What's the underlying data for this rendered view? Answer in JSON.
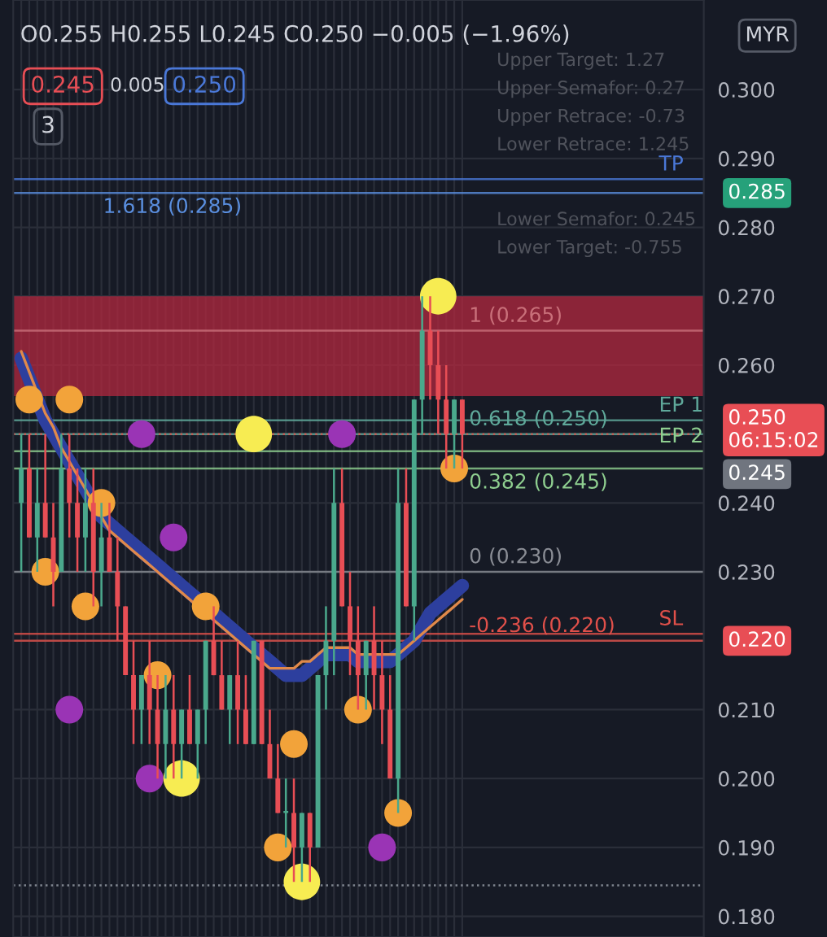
{
  "chart_data": {
    "type": "candlestick",
    "categories": [
      null,
      null,
      null,
      null,
      null,
      null,
      null,
      null,
      null,
      null,
      null,
      null,
      null,
      null,
      null,
      null,
      null,
      null,
      null,
      null,
      null,
      null,
      null,
      null,
      null,
      null,
      null,
      null,
      null,
      null,
      null,
      null,
      null,
      null,
      null,
      null,
      null,
      null,
      null,
      null,
      null,
      null,
      null,
      null,
      null,
      null,
      null,
      null,
      null,
      null,
      null,
      null,
      null,
      null,
      null,
      null
    ],
    "ohlc": [
      [
        0.24,
        0.25,
        0.23,
        0.245
      ],
      [
        0.245,
        0.25,
        0.235,
        0.235
      ],
      [
        0.235,
        0.245,
        0.23,
        0.24
      ],
      [
        0.24,
        0.25,
        0.235,
        0.235
      ],
      [
        0.235,
        0.24,
        0.225,
        0.23
      ],
      [
        0.23,
        0.25,
        0.23,
        0.245
      ],
      [
        0.245,
        0.25,
        0.235,
        0.24
      ],
      [
        0.24,
        0.245,
        0.23,
        0.235
      ],
      [
        0.235,
        0.245,
        0.23,
        0.24
      ],
      [
        0.24,
        0.245,
        0.225,
        0.23
      ],
      [
        0.23,
        0.24,
        0.225,
        0.235
      ],
      [
        0.235,
        0.24,
        0.23,
        0.23
      ],
      [
        0.23,
        0.235,
        0.22,
        0.225
      ],
      [
        0.225,
        0.225,
        0.215,
        0.215
      ],
      [
        0.215,
        0.22,
        0.205,
        0.21
      ],
      [
        0.21,
        0.215,
        0.205,
        0.215
      ],
      [
        0.215,
        0.22,
        0.205,
        0.21
      ],
      [
        0.21,
        0.215,
        0.2,
        0.205
      ],
      [
        0.205,
        0.215,
        0.2,
        0.21
      ],
      [
        0.21,
        0.215,
        0.2,
        0.205
      ],
      [
        0.205,
        0.21,
        0.2,
        0.21
      ],
      [
        0.21,
        0.215,
        0.205,
        0.205
      ],
      [
        0.205,
        0.21,
        0.2,
        0.21
      ],
      [
        0.21,
        0.22,
        0.205,
        0.22
      ],
      [
        0.22,
        0.225,
        0.215,
        0.215
      ],
      [
        0.215,
        0.22,
        0.21,
        0.21
      ],
      [
        0.21,
        0.215,
        0.205,
        0.215
      ],
      [
        0.215,
        0.22,
        0.205,
        0.21
      ],
      [
        0.21,
        0.215,
        0.205,
        0.205
      ],
      [
        0.205,
        0.22,
        0.205,
        0.22
      ],
      [
        0.22,
        0.22,
        0.205,
        0.205
      ],
      [
        0.205,
        0.21,
        0.2,
        0.2
      ],
      [
        0.2,
        0.205,
        0.195,
        0.195
      ],
      [
        0.195,
        0.2,
        0.19,
        0.195
      ],
      [
        0.195,
        0.2,
        0.185,
        0.19
      ],
      [
        0.19,
        0.195,
        0.185,
        0.195
      ],
      [
        0.195,
        0.195,
        0.185,
        0.19
      ],
      [
        0.19,
        0.215,
        0.19,
        0.215
      ],
      [
        0.215,
        0.225,
        0.21,
        0.22
      ],
      [
        0.22,
        0.245,
        0.215,
        0.24
      ],
      [
        0.24,
        0.245,
        0.225,
        0.225
      ],
      [
        0.225,
        0.23,
        0.215,
        0.22
      ],
      [
        0.22,
        0.225,
        0.21,
        0.215
      ],
      [
        0.215,
        0.22,
        0.21,
        0.22
      ],
      [
        0.22,
        0.225,
        0.21,
        0.215
      ],
      [
        0.215,
        0.22,
        0.205,
        0.21
      ],
      [
        0.21,
        0.215,
        0.2,
        0.2
      ],
      [
        0.2,
        0.245,
        0.195,
        0.24
      ],
      [
        0.24,
        0.245,
        0.225,
        0.225
      ],
      [
        0.225,
        0.255,
        0.22,
        0.255
      ],
      [
        0.255,
        0.27,
        0.25,
        0.265
      ],
      [
        0.265,
        0.27,
        0.255,
        0.26
      ],
      [
        0.26,
        0.265,
        0.25,
        0.255
      ],
      [
        0.255,
        0.26,
        0.245,
        0.25
      ],
      [
        0.25,
        0.255,
        0.245,
        0.255
      ],
      [
        0.255,
        0.255,
        0.245,
        0.25
      ]
    ],
    "colors": [
      "#4aa88c",
      "#e84e55",
      "#4aa88c",
      "#e84e55",
      "#e84e55",
      "#4aa88c",
      "#e84e55",
      "#e84e55",
      "#4aa88c",
      "#e84e55",
      "#4aa88c",
      "#e84e55",
      "#e84e55",
      "#e84e55",
      "#e84e55",
      "#4aa88c",
      "#e84e55",
      "#e84e55",
      "#4aa88c",
      "#e84e55",
      "#4aa88c",
      "#e84e55",
      "#4aa88c",
      "#4aa88c",
      "#e84e55",
      "#e84e55",
      "#4aa88c",
      "#e84e55",
      "#e84e55",
      "#4aa88c",
      "#e84e55",
      "#e84e55",
      "#e84e55",
      "#4aa88c",
      "#e84e55",
      "#4aa88c",
      "#e84e55",
      "#4aa88c",
      "#4aa88c",
      "#4aa88c",
      "#e84e55",
      "#e84e55",
      "#e84e55",
      "#4aa88c",
      "#e84e55",
      "#e84e55",
      "#e84e55",
      "#4aa88c",
      "#e84e55",
      "#4aa88c",
      "#4aa88c",
      "#e84e55",
      "#e84e55",
      "#e84e55",
      "#4aa88c",
      "#e84e55"
    ],
    "series": [
      {
        "type": "line",
        "color": "#2d3f9e",
        "values": [
          0.261,
          0.258,
          0.255,
          0.252,
          0.25,
          0.248,
          0.246,
          0.244,
          0.242,
          0.24,
          0.238,
          0.237,
          0.236,
          0.235,
          0.234,
          0.233,
          0.232,
          0.231,
          0.23,
          0.229,
          0.228,
          0.227,
          0.226,
          0.225,
          0.224,
          0.223,
          0.222,
          0.221,
          0.22,
          0.219,
          0.218,
          0.217,
          0.216,
          0.215,
          0.215,
          0.215,
          0.216,
          0.217,
          0.218,
          0.218,
          0.218,
          0.218,
          0.217,
          0.217,
          0.217,
          0.217,
          0.217,
          0.218,
          0.219,
          0.22,
          0.222,
          0.224,
          0.225,
          0.226,
          0.227,
          0.228
        ]
      },
      {
        "type": "line",
        "color": "#e0894a",
        "values": [
          0.262,
          0.259,
          0.256,
          0.253,
          0.251,
          0.248,
          0.246,
          0.244,
          0.242,
          0.24,
          0.238,
          0.236,
          0.235,
          0.234,
          0.233,
          0.232,
          0.231,
          0.23,
          0.229,
          0.228,
          0.227,
          0.226,
          0.225,
          0.224,
          0.223,
          0.222,
          0.221,
          0.22,
          0.219,
          0.218,
          0.217,
          0.216,
          0.216,
          0.216,
          0.216,
          0.217,
          0.217,
          0.218,
          0.219,
          0.219,
          0.219,
          0.219,
          0.218,
          0.218,
          0.218,
          0.218,
          0.218,
          0.218,
          0.219,
          0.22,
          0.221,
          0.222,
          0.223,
          0.224,
          0.225,
          0.226
        ]
      },
      {
        "type": "scatter",
        "color": "#f2a33a",
        "values": [
          null,
          0.255,
          null,
          0.23,
          null,
          null,
          0.255,
          null,
          0.225,
          null,
          0.24,
          null,
          null,
          null,
          null,
          null,
          null,
          0.215,
          null,
          null,
          null,
          null,
          null,
          0.225,
          null,
          null,
          null,
          null,
          null,
          null,
          null,
          null,
          0.19,
          null,
          0.205,
          null,
          null,
          null,
          null,
          null,
          null,
          null,
          0.21,
          null,
          null,
          null,
          null,
          0.195,
          null,
          null,
          null,
          null,
          null,
          null,
          0.245,
          null
        ]
      },
      {
        "type": "scatter",
        "color": "#9a34b5",
        "values": [
          null,
          null,
          null,
          null,
          null,
          null,
          0.21,
          null,
          null,
          null,
          null,
          null,
          null,
          null,
          null,
          0.25,
          0.2,
          null,
          null,
          0.235,
          null,
          null,
          null,
          null,
          null,
          null,
          null,
          null,
          null,
          null,
          null,
          null,
          null,
          null,
          null,
          null,
          null,
          null,
          null,
          null,
          0.25,
          null,
          null,
          null,
          null,
          0.19,
          null,
          null,
          null,
          null,
          null,
          null,
          null,
          null,
          null,
          null
        ]
      },
      {
        "type": "scatter",
        "color": "#f7ec52",
        "values": [
          null,
          null,
          null,
          null,
          null,
          null,
          null,
          null,
          null,
          null,
          null,
          null,
          null,
          null,
          null,
          null,
          null,
          null,
          null,
          null,
          0.2,
          null,
          null,
          null,
          null,
          null,
          null,
          null,
          null,
          0.25,
          null,
          null,
          null,
          null,
          null,
          0.185,
          null,
          null,
          null,
          null,
          null,
          null,
          null,
          null,
          null,
          null,
          null,
          null,
          null,
          null,
          null,
          null,
          0.27,
          null,
          null,
          null
        ]
      }
    ],
    "ylim": [
      0.177,
      0.313
    ],
    "yticks": [
      {
        "value": 0.18,
        "label": "0.180"
      },
      {
        "value": 0.19,
        "label": "0.190"
      },
      {
        "value": 0.2,
        "label": "0.200"
      },
      {
        "value": 0.21,
        "label": "0.210"
      },
      {
        "value": 0.22,
        "label": null
      },
      {
        "value": 0.23,
        "label": "0.230"
      },
      {
        "value": 0.24,
        "label": "0.240"
      },
      {
        "value": 0.25,
        "label": null
      },
      {
        "value": 0.26,
        "label": "0.260"
      },
      {
        "value": 0.27,
        "label": "0.270"
      },
      {
        "value": 0.28,
        "label": "0.280"
      },
      {
        "value": 0.29,
        "label": "0.290"
      },
      {
        "value": 0.3,
        "label": "0.300"
      }
    ],
    "grid": true,
    "tick_labels": "y",
    "bands": [
      {
        "axis": "y",
        "from": 0.2555,
        "to": 0.27,
        "color": "#b3283f"
      }
    ],
    "ref_lines": [
      {
        "axis": "y",
        "value": 0.285,
        "label": "1.618 (0.285)",
        "color": "#5a8fe0",
        "line_style": "solid"
      },
      {
        "axis": "y",
        "value": 0.265,
        "label": "1 (0.265)",
        "color": "#c9707a",
        "line_style": "solid"
      },
      {
        "axis": "y",
        "value": 0.25,
        "label": "0.618 (0.250)",
        "color": "#5fa89a",
        "line_style": "solid"
      },
      {
        "axis": "y",
        "value": 0.245,
        "label": "0.382 (0.245)",
        "color": "#8fcf90",
        "line_style": "solid"
      },
      {
        "axis": "y",
        "value": 0.23,
        "label": "0 (0.230)",
        "color": "#8a8d95",
        "line_style": "solid"
      },
      {
        "axis": "y",
        "value": 0.22,
        "label": "-0.236 (0.220)",
        "color": "#e0504a",
        "line_style": "solid"
      },
      {
        "axis": "y",
        "value": 0.287,
        "label": "TP",
        "color": "#4a78d8",
        "line_style": "solid"
      },
      {
        "axis": "y",
        "value": 0.252,
        "label": "EP 1",
        "color": "#5fa89a",
        "line_style": "solid"
      },
      {
        "axis": "y",
        "value": 0.2475,
        "label": "EP 2",
        "color": "#8fcf90",
        "line_style": "solid"
      },
      {
        "axis": "y",
        "value": 0.221,
        "label": "SL",
        "color": "#e0504a",
        "line_style": "solid"
      },
      {
        "axis": "y",
        "value": 0.25,
        "color": "#e0504a",
        "line_style": "dotted"
      },
      {
        "axis": "y",
        "value": 0.1845,
        "color": "#9aa0aa",
        "line_style": "dotted"
      }
    ],
    "annotations": [
      "O0.255 H0.255 L0.245 C0.250 −0.005 (−1.96%)",
      "0.245",
      "0.005",
      "0.250",
      "3",
      "MYR",
      "Upper Target: 1.27",
      "Upper Semafor: 0.27",
      "Upper Retrace: -0.73",
      "Lower Retrace: 1.245",
      "Lower Semafor: 0.245",
      "Lower Target: -0.755",
      "0.285",
      "0.250\n06:15:02",
      "0.245",
      "0.220"
    ]
  }
}
